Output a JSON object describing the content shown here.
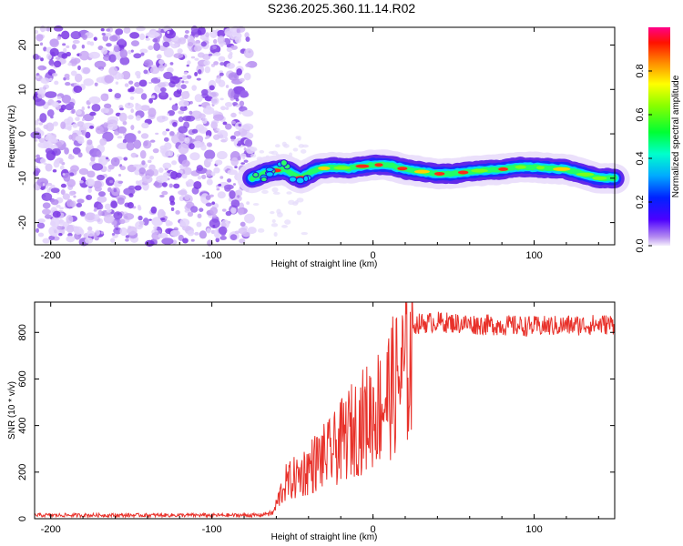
{
  "title": "S236.2025.360.11.14.R02",
  "chart_data": [
    {
      "type": "heatmap",
      "name": "spectrogram",
      "xlabel": "Height of straight line (km)",
      "ylabel": "Frequency (Hz)",
      "xlim": [
        -210,
        150
      ],
      "ylim": [
        -25,
        24
      ],
      "xticks": [
        -200,
        -100,
        0,
        100
      ],
      "xtick_labels": [
        "-200",
        "-100",
        "0",
        "100"
      ],
      "yticks": [
        -20,
        -10,
        0,
        10,
        20
      ],
      "ytick_labels": [
        "-20",
        "-10",
        "0",
        "10",
        "20"
      ],
      "noise_region_x": [
        -210,
        -75
      ],
      "signal_ridge": {
        "x": [
          -75,
          -65,
          -55,
          -45,
          -35,
          -25,
          -15,
          -5,
          0,
          10,
          20,
          30,
          40,
          50,
          60,
          70,
          80,
          90,
          100,
          110,
          120,
          130,
          140,
          150
        ],
        "frequency": [
          -10,
          -8.5,
          -8,
          -10,
          -8,
          -7.5,
          -7.8,
          -7.2,
          -7,
          -7,
          -8,
          -8.5,
          -9,
          -9,
          -8.5,
          -8.2,
          -8,
          -7.5,
          -7.5,
          -7.8,
          -8,
          -9,
          -10,
          -10
        ]
      },
      "colorbar": {
        "label": "Normalized spectral amplitude",
        "range": [
          0,
          1
        ],
        "ticks": [
          0.0,
          0.2,
          0.4,
          0.6,
          0.8
        ],
        "tick_labels": [
          "0.0",
          "0.2",
          "0.4",
          "0.6",
          "0.8"
        ]
      }
    },
    {
      "type": "line",
      "name": "snr",
      "xlabel": "Height of straight line (km)",
      "ylabel": "SNR (10 * v/v)",
      "xlim": [
        -210,
        150
      ],
      "ylim": [
        0,
        930
      ],
      "xticks": [
        -200,
        -100,
        0,
        100
      ],
      "xtick_labels": [
        "-200",
        "-100",
        "0",
        "100"
      ],
      "yticks": [
        0,
        200,
        400,
        600,
        800
      ],
      "ytick_labels": [
        "0",
        "200",
        "400",
        "600",
        "800"
      ],
      "color": "#e8312a",
      "envelope": {
        "x": [
          -210,
          -70,
          -62,
          -55,
          -45,
          -35,
          -25,
          -15,
          -5,
          5,
          15,
          25,
          40,
          60,
          100,
          150
        ],
        "y": [
          15,
          15,
          30,
          180,
          230,
          300,
          350,
          450,
          520,
          600,
          720,
          840,
          850,
          840,
          830,
          840
        ]
      }
    }
  ]
}
